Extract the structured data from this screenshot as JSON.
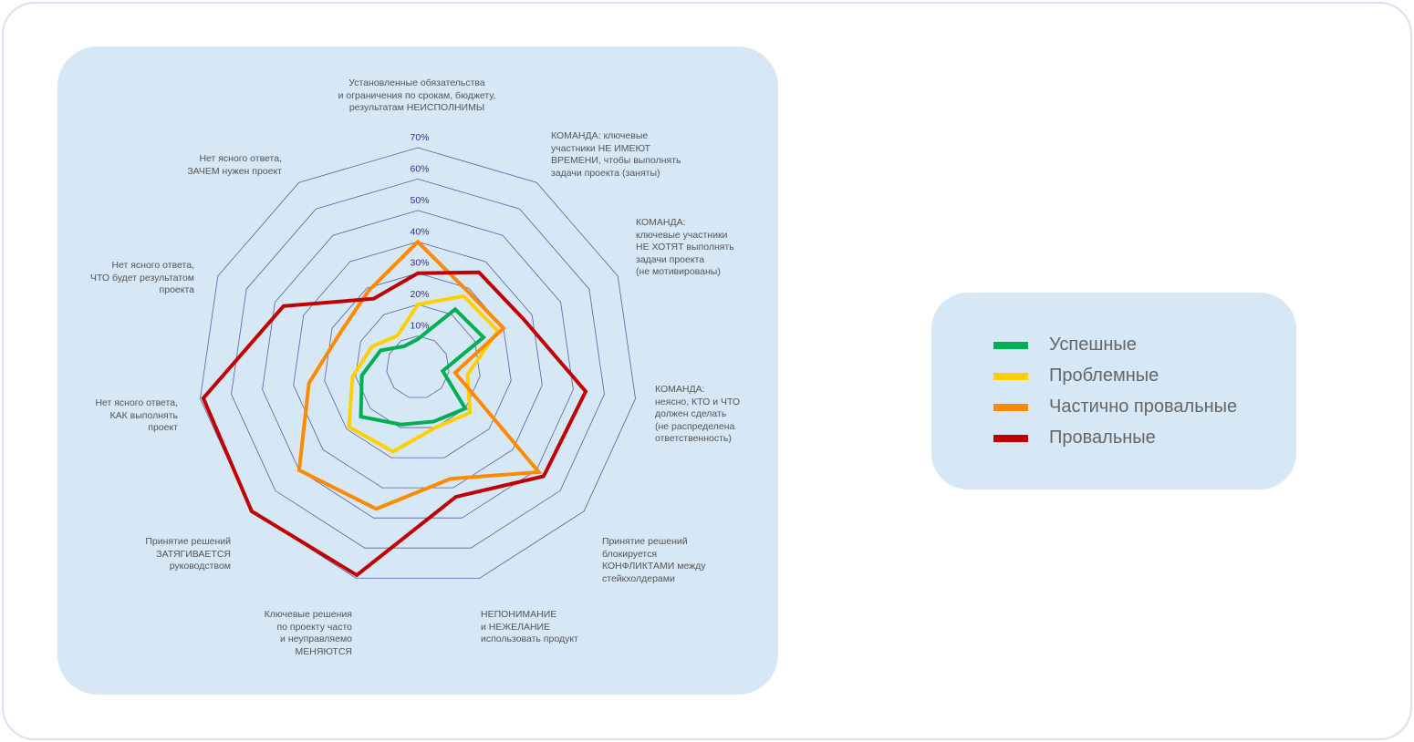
{
  "chart_data": {
    "type": "radar",
    "title": "",
    "axis_ticks": [
      "10%",
      "20%",
      "30%",
      "40%",
      "50%",
      "60%",
      "70%"
    ],
    "range": [
      0,
      70
    ],
    "grid": true,
    "legend_position": "right",
    "axes": [
      [
        "Установленные обязательства",
        "и ограничения по срокам, бюджету,",
        "результатам НЕИСПОЛНИМЫ"
      ],
      [
        "КОМАНДА: ключевые",
        "участники НЕ ИМЕЮТ",
        "ВРЕМЕНИ, чтобы выполнять",
        "задачи проекта (заняты)"
      ],
      [
        "КОМАНДА:",
        "ключевые участники",
        "НЕ ХОТЯТ выполнять",
        "задачи проекта",
        "(не мотивированы)"
      ],
      [
        "КОМАНДА:",
        "неясно, КТО и ЧТО",
        "должен сделать",
        "(не распределена",
        "ответственность)"
      ],
      [
        "Принятие решений",
        "блокируется",
        "КОНФЛИКТАМИ между",
        "стейкхолдерами"
      ],
      [
        "НЕПОНИМАНИЕ",
        "и НЕЖЕЛАНИЕ",
        "использовать продукт"
      ],
      [
        "Ключевые решения",
        "по проекту часто",
        "и неуправляемо",
        "МЕНЯЮТСЯ"
      ],
      [
        "Принятие решений",
        "ЗАТЯГИВАЕТСЯ",
        "руководством"
      ],
      [
        "Нет ясного ответа,",
        "КАК выполнять",
        "проект"
      ],
      [
        "Нет ясного ответа,",
        "ЧТО будет результатом",
        "проекта"
      ],
      [
        "Нет ясного ответа,",
        "ЗАЧЕМ нужен проект"
      ]
    ],
    "series": [
      {
        "name": "Успешные",
        "color": "#00b050",
        "values": [
          9,
          22,
          23,
          8,
          20,
          18,
          19,
          24,
          18,
          13,
          8
        ]
      },
      {
        "name": "Проблемные",
        "color": "#ffd000",
        "values": [
          20,
          27,
          28,
          16,
          22,
          20,
          28,
          29,
          21,
          16,
          12
        ]
      },
      {
        "name": "Частично провальные",
        "color": "#ff8a00",
        "values": [
          40,
          29,
          30,
          12,
          51,
          37,
          47,
          50,
          35,
          27,
          29
        ]
      },
      {
        "name": "Провальные",
        "color": "#c00000",
        "values": [
          30,
          36,
          37,
          54,
          53,
          43,
          69,
          70,
          69,
          47,
          26
        ]
      }
    ]
  }
}
